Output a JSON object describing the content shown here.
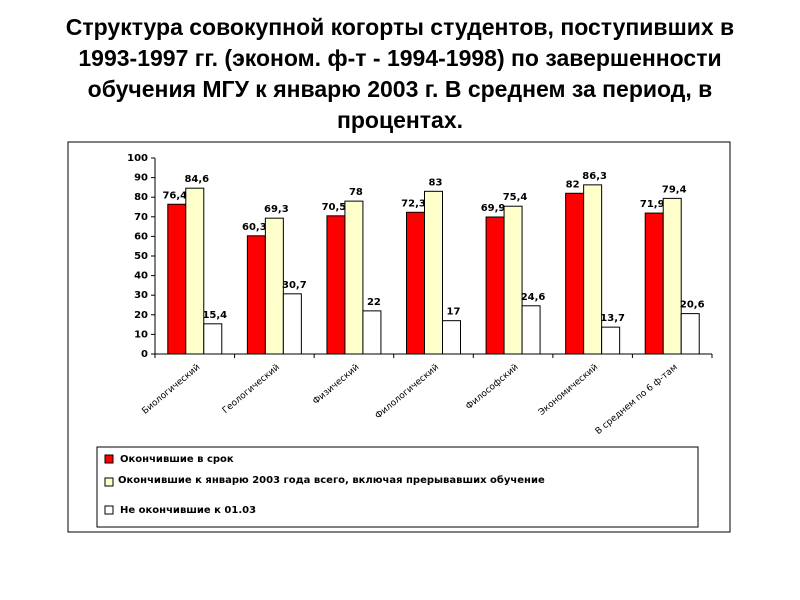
{
  "chart_data": {
    "type": "bar",
    "title": "Структура совокупной когорты студентов, поступивших в 1993-1997 гг. (эконом. ф-т - 1994-1998) по завершенности обучения МГУ к январю 2003 г. В среднем за период, в процентах.",
    "categories": [
      "Биологический",
      "Геологический",
      "Физический",
      "Филологический",
      "Философский",
      "Экономический",
      "В среднем по 6 ф-там"
    ],
    "series": [
      {
        "name": "Окончившие в срок",
        "color": "#ff0000",
        "values": [
          76.4,
          60.3,
          70.5,
          72.3,
          69.9,
          82,
          71.9
        ],
        "value_labels": [
          "76,4",
          "60,3",
          "70,5",
          "72,3",
          "69,9",
          "82",
          "71,9"
        ]
      },
      {
        "name": "Окончившие к январю 2003 года всего, включая прерывавших обучение",
        "color": "#ffffcc",
        "values": [
          84.6,
          69.3,
          78,
          83,
          75.4,
          86.3,
          79.4
        ],
        "value_labels": [
          "84,6",
          "69,3",
          "78",
          "83",
          "75,4",
          "86,3",
          "79,4"
        ]
      },
      {
        "name": "Не окончившие к 01.03",
        "color": "#ffffff",
        "values": [
          15.4,
          30.7,
          22,
          17,
          24.6,
          13.7,
          20.6
        ],
        "value_labels": [
          "15,4",
          "30,7",
          "22",
          "17",
          "24,6",
          "13,7",
          "20,6"
        ]
      }
    ],
    "ylim": [
      0,
      100
    ],
    "yticks": [
      0,
      10,
      20,
      30,
      40,
      50,
      60,
      70,
      80,
      90,
      100
    ],
    "grid": false,
    "legend": "bottom"
  }
}
